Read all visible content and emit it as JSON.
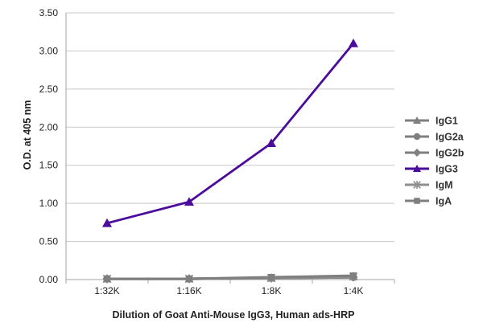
{
  "chart_data": {
    "type": "line",
    "title": "",
    "xlabel": "Dilution of Goat Anti-Mouse IgG3, Human ads-HRP",
    "ylabel": "O.D. at 405 nm",
    "categories": [
      "1:32K",
      "1:16K",
      "1:8K",
      "1:4K"
    ],
    "ylim": [
      0,
      3.5
    ],
    "yticks": [
      "0.00",
      "0.50",
      "1.00",
      "1.50",
      "2.00",
      "2.50",
      "3.00",
      "3.50"
    ],
    "grid": "horizontal",
    "legend_position": "right",
    "series": [
      {
        "name": "IgG1",
        "marker": "triangle",
        "color": "#7f7f7f",
        "values": [
          0.01,
          0.01,
          0.02,
          0.04
        ]
      },
      {
        "name": "IgG2a",
        "marker": "circle",
        "color": "#7f7f7f",
        "values": [
          0.01,
          0.01,
          0.02,
          0.03
        ]
      },
      {
        "name": "IgG2b",
        "marker": "diamond",
        "color": "#7f7f7f",
        "values": [
          0.01,
          0.01,
          0.02,
          0.03
        ]
      },
      {
        "name": "IgG3",
        "marker": "triangle",
        "color": "#4b0c9c",
        "values": [
          0.74,
          1.02,
          1.79,
          3.1
        ]
      },
      {
        "name": "IgM",
        "marker": "star",
        "color": "#8f8f8f",
        "values": [
          0.01,
          0.01,
          0.02,
          0.04
        ]
      },
      {
        "name": "IgA",
        "marker": "square",
        "color": "#7f7f7f",
        "values": [
          0.01,
          0.01,
          0.03,
          0.05
        ]
      }
    ]
  }
}
